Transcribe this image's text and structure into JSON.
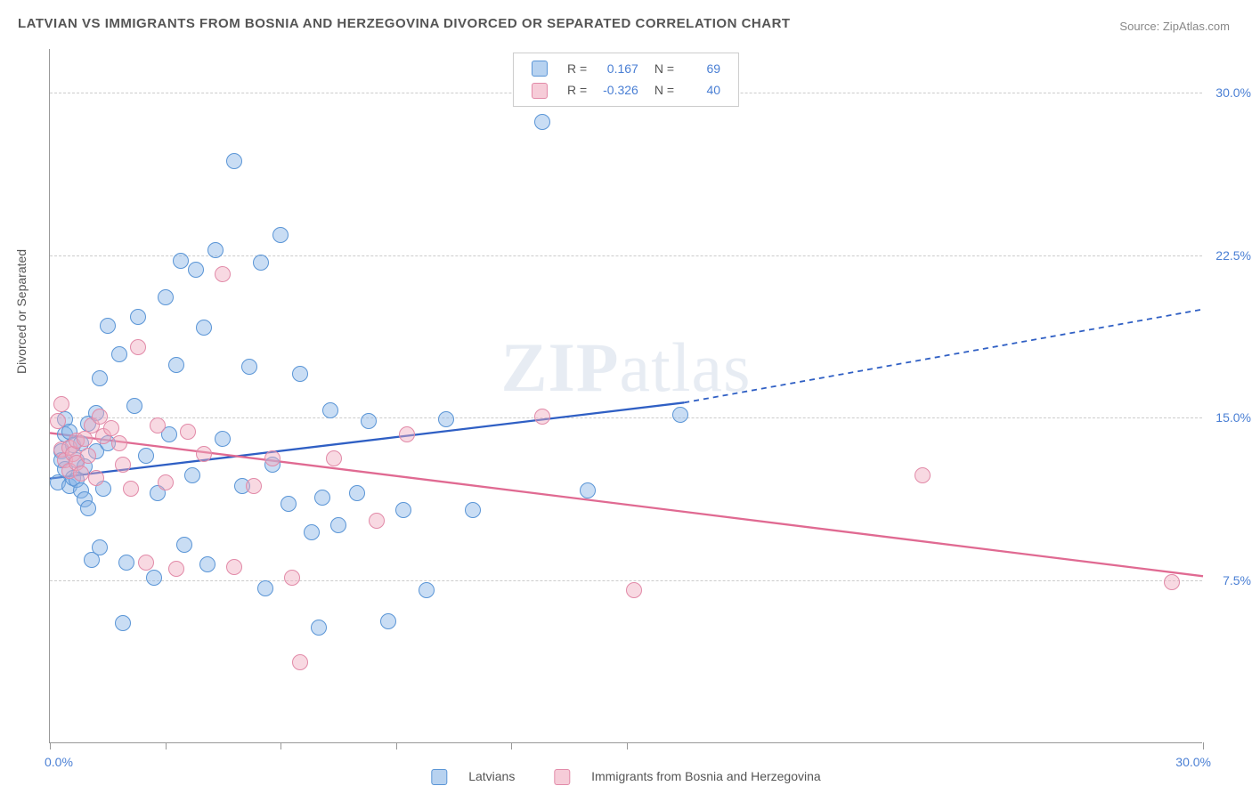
{
  "title": "LATVIAN VS IMMIGRANTS FROM BOSNIA AND HERZEGOVINA DIVORCED OR SEPARATED CORRELATION CHART",
  "source_label": "Source:",
  "source_name": "ZipAtlas.com",
  "yaxis_label": "Divorced or Separated",
  "watermark": "ZIPatlas",
  "chart": {
    "type": "scatter",
    "xlim": [
      0,
      30
    ],
    "ylim": [
      0,
      32
    ],
    "y_ticks": [
      7.5,
      15.0,
      22.5,
      30.0
    ],
    "y_tick_labels": [
      "7.5%",
      "15.0%",
      "22.5%",
      "30.0%"
    ],
    "x_tick_positions": [
      0,
      3,
      6,
      9,
      12,
      15,
      30
    ],
    "x_min_label": "0.0%",
    "x_max_label": "30.0%",
    "grid_color": "#cccccc",
    "axis_color": "#999999",
    "background_color": "#ffffff"
  },
  "series": [
    {
      "name": "Latvians",
      "color_fill": "rgba(135,180,230,0.45)",
      "color_stroke": "#5a95d6",
      "line_color": "#2f5fc4",
      "R": "0.167",
      "N": "69",
      "marker_radius_px": 9,
      "regression": {
        "x1": 0,
        "y1": 12.2,
        "x2": 16.5,
        "y2": 15.7,
        "x_dash_end": 30,
        "y_dash_end": 20.0
      },
      "points": [
        [
          0.2,
          12.0
        ],
        [
          0.3,
          13.4
        ],
        [
          0.3,
          13.0
        ],
        [
          0.4,
          12.6
        ],
        [
          0.4,
          14.2
        ],
        [
          0.4,
          14.9
        ],
        [
          0.5,
          11.8
        ],
        [
          0.5,
          14.3
        ],
        [
          0.6,
          13.7
        ],
        [
          0.6,
          12.2
        ],
        [
          0.7,
          13.0
        ],
        [
          0.7,
          12.1
        ],
        [
          0.8,
          11.6
        ],
        [
          0.8,
          13.8
        ],
        [
          0.9,
          12.7
        ],
        [
          0.9,
          11.2
        ],
        [
          1.0,
          14.7
        ],
        [
          1.0,
          10.8
        ],
        [
          1.1,
          8.4
        ],
        [
          1.2,
          13.4
        ],
        [
          1.2,
          15.2
        ],
        [
          1.3,
          9.0
        ],
        [
          1.3,
          16.8
        ],
        [
          1.4,
          11.7
        ],
        [
          1.5,
          13.8
        ],
        [
          1.5,
          19.2
        ],
        [
          1.8,
          17.9
        ],
        [
          1.9,
          5.5
        ],
        [
          2.0,
          8.3
        ],
        [
          2.2,
          15.5
        ],
        [
          2.3,
          19.6
        ],
        [
          2.5,
          13.2
        ],
        [
          2.7,
          7.6
        ],
        [
          2.8,
          11.5
        ],
        [
          3.0,
          20.5
        ],
        [
          3.1,
          14.2
        ],
        [
          3.3,
          17.4
        ],
        [
          3.4,
          22.2
        ],
        [
          3.5,
          9.1
        ],
        [
          3.7,
          12.3
        ],
        [
          3.8,
          21.8
        ],
        [
          4.0,
          19.1
        ],
        [
          4.1,
          8.2
        ],
        [
          4.3,
          22.7
        ],
        [
          4.5,
          14.0
        ],
        [
          4.8,
          26.8
        ],
        [
          5.0,
          11.8
        ],
        [
          5.2,
          17.3
        ],
        [
          5.5,
          22.1
        ],
        [
          5.6,
          7.1
        ],
        [
          5.8,
          12.8
        ],
        [
          6.0,
          23.4
        ],
        [
          6.2,
          11.0
        ],
        [
          6.5,
          17.0
        ],
        [
          6.8,
          9.7
        ],
        [
          7.0,
          5.3
        ],
        [
          7.1,
          11.3
        ],
        [
          7.3,
          15.3
        ],
        [
          7.5,
          10.0
        ],
        [
          8.0,
          11.5
        ],
        [
          8.3,
          14.8
        ],
        [
          8.8,
          5.6
        ],
        [
          9.2,
          10.7
        ],
        [
          9.8,
          7.0
        ],
        [
          10.3,
          14.9
        ],
        [
          11.0,
          10.7
        ],
        [
          12.8,
          28.6
        ],
        [
          14.0,
          11.6
        ],
        [
          16.4,
          15.1
        ]
      ]
    },
    {
      "name": "Immigrants from Bosnia and Herzegovina",
      "color_fill": "rgba(240,170,190,0.45)",
      "color_stroke": "#e28aa8",
      "line_color": "#e06a92",
      "R": "-0.326",
      "N": "40",
      "marker_radius_px": 9,
      "regression": {
        "x1": 0,
        "y1": 14.3,
        "x2": 30,
        "y2": 7.7
      },
      "points": [
        [
          0.2,
          14.8
        ],
        [
          0.3,
          13.5
        ],
        [
          0.3,
          15.6
        ],
        [
          0.4,
          13.0
        ],
        [
          0.5,
          13.6
        ],
        [
          0.5,
          12.5
        ],
        [
          0.6,
          13.3
        ],
        [
          0.7,
          12.9
        ],
        [
          0.7,
          13.9
        ],
        [
          0.8,
          12.4
        ],
        [
          0.9,
          14.0
        ],
        [
          1.0,
          13.2
        ],
        [
          1.1,
          14.6
        ],
        [
          1.2,
          12.2
        ],
        [
          1.3,
          15.0
        ],
        [
          1.4,
          14.1
        ],
        [
          1.6,
          14.5
        ],
        [
          1.8,
          13.8
        ],
        [
          1.9,
          12.8
        ],
        [
          2.1,
          11.7
        ],
        [
          2.3,
          18.2
        ],
        [
          2.5,
          8.3
        ],
        [
          2.8,
          14.6
        ],
        [
          3.0,
          12.0
        ],
        [
          3.3,
          8.0
        ],
        [
          3.6,
          14.3
        ],
        [
          4.0,
          13.3
        ],
        [
          4.5,
          21.6
        ],
        [
          4.8,
          8.1
        ],
        [
          5.3,
          11.8
        ],
        [
          5.8,
          13.1
        ],
        [
          6.3,
          7.6
        ],
        [
          6.5,
          3.7
        ],
        [
          7.4,
          13.1
        ],
        [
          8.5,
          10.2
        ],
        [
          9.3,
          14.2
        ],
        [
          12.8,
          15.0
        ],
        [
          15.2,
          7.0
        ],
        [
          22.7,
          12.3
        ],
        [
          29.2,
          7.4
        ]
      ]
    }
  ]
}
